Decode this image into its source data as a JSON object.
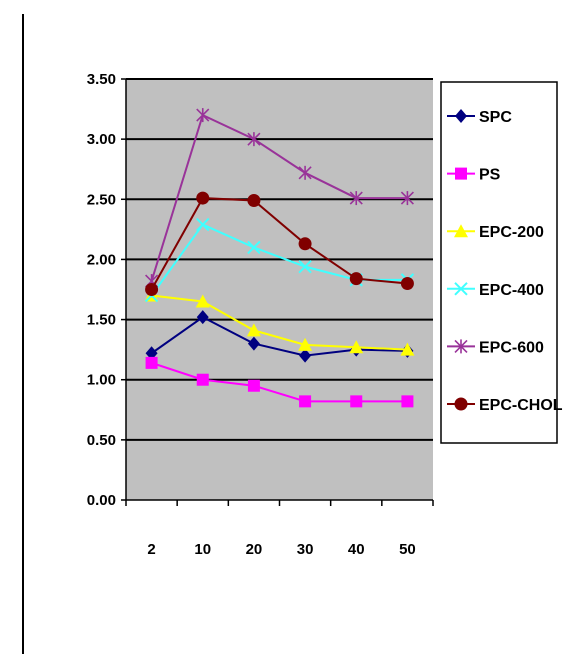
{
  "chart_data": {
    "type": "line",
    "title": "",
    "xlabel": "",
    "ylabel": "",
    "categories": [
      "2",
      "10",
      "20",
      "30",
      "40",
      "50"
    ],
    "ylim": [
      0,
      3.5
    ],
    "yticks": [
      "0.00",
      "0.50",
      "1.00",
      "1.50",
      "2.00",
      "2.50",
      "3.00",
      "3.50"
    ],
    "grid": true,
    "legend_position": "right",
    "plot_background": "#c0c0c0",
    "series": [
      {
        "name": "SPC",
        "values": [
          1.22,
          1.52,
          1.3,
          1.2,
          1.25,
          1.24
        ],
        "color": "#000080",
        "marker": "diamond"
      },
      {
        "name": "PS",
        "values": [
          1.14,
          1.0,
          0.95,
          0.82,
          0.82,
          0.82
        ],
        "color": "#ff00ff",
        "marker": "square"
      },
      {
        "name": "EPC-200",
        "values": [
          1.7,
          1.65,
          1.41,
          1.29,
          1.27,
          1.25
        ],
        "color": "#ffff00",
        "marker": "triangle"
      },
      {
        "name": "EPC-400",
        "values": [
          1.7,
          2.29,
          2.1,
          1.94,
          1.83,
          1.83
        ],
        "color": "#40ffff",
        "marker": "x"
      },
      {
        "name": "EPC-600",
        "values": [
          1.82,
          3.2,
          3.0,
          2.72,
          2.51,
          2.51
        ],
        "color": "#993399",
        "marker": "star"
      },
      {
        "name": "EPC-CHOL",
        "values": [
          1.75,
          2.51,
          2.49,
          2.13,
          1.84,
          1.8
        ],
        "color": "#800000",
        "marker": "circle"
      }
    ]
  }
}
